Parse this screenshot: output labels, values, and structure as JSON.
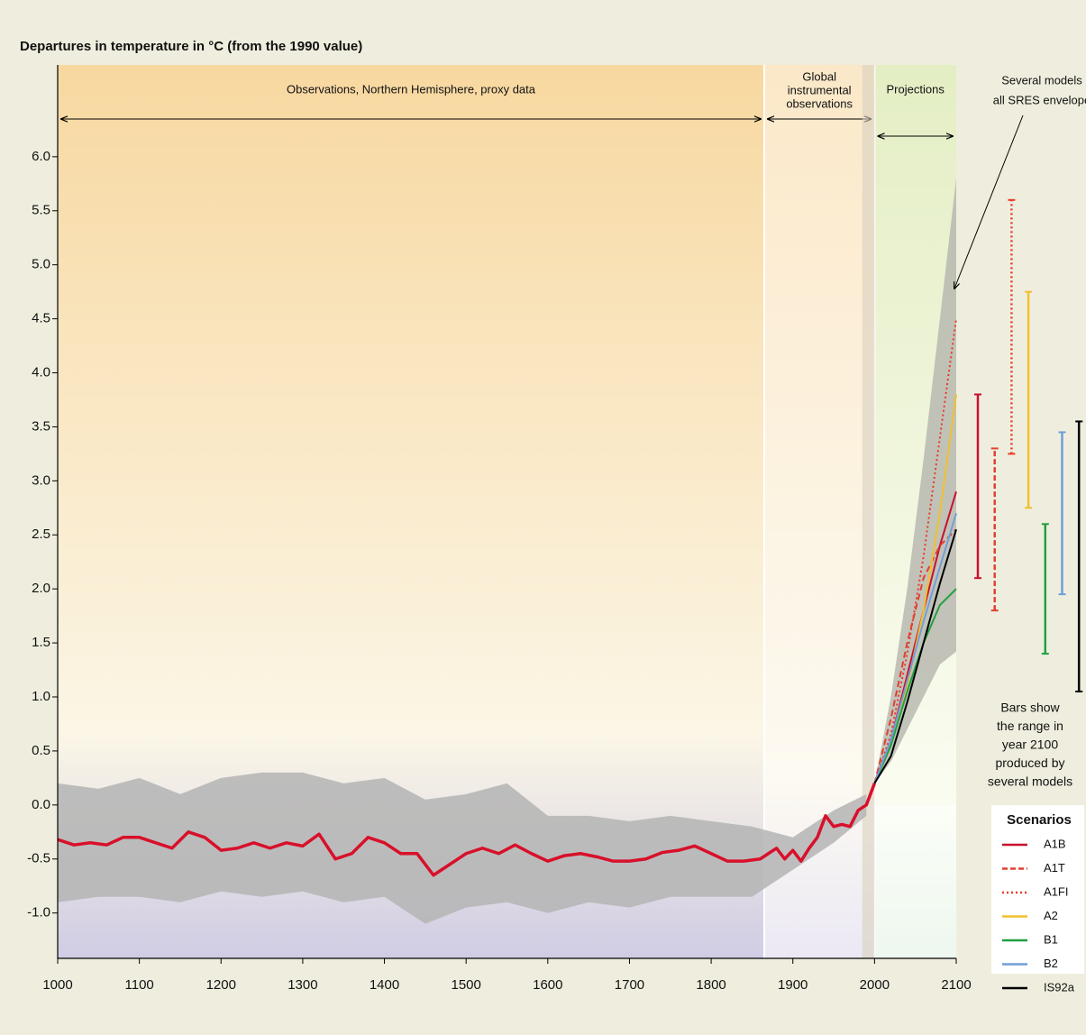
{
  "chart_data": {
    "type": "line",
    "title": "Departures in temperature in °C (from the 1990 value)",
    "xlim": [
      1000,
      2100
    ],
    "xticks": [
      1000,
      1100,
      1200,
      1300,
      1400,
      1500,
      1600,
      1700,
      1800,
      1900,
      2000,
      2100
    ],
    "ylim": [
      -1.42,
      6.85
    ],
    "yticks": [
      {
        "value": 6,
        "label": "6.0"
      },
      5.5,
      {
        "value": 5,
        "label": "5.0"
      },
      4.5,
      {
        "value": 4,
        "label": "4.0"
      },
      3.5,
      {
        "value": 3,
        "label": "3.0"
      },
      2.5,
      {
        "value": 2,
        "label": "2.0"
      },
      1.5,
      {
        "value": 1,
        "label": "1.0"
      },
      0.5,
      {
        "value": 0,
        "label": "0.0"
      },
      -0.5,
      {
        "value": -1,
        "label": "-1.0"
      }
    ],
    "regions": [
      {
        "label": [
          "Observations, Northern Hemisphere, proxy data"
        ],
        "start": 1000,
        "end": 1865
      },
      {
        "label": [
          "Global",
          "instrumental",
          "observations"
        ],
        "start": 1865,
        "end": 2000
      },
      {
        "label": [
          "Projections"
        ],
        "start": 2000,
        "end": 2100
      }
    ],
    "envelope_label": [
      "Several models",
      "all SRES envelope"
    ],
    "bars_note": [
      "Bars show",
      "the range in",
      "year 2100",
      "produced by",
      "several models"
    ],
    "legend_title": "Scenarios",
    "reconstruction": {
      "color": "#d8102a",
      "x": [
        1000,
        1020,
        1040,
        1060,
        1080,
        1100,
        1120,
        1140,
        1160,
        1180,
        1200,
        1220,
        1240,
        1260,
        1280,
        1300,
        1320,
        1340,
        1360,
        1380,
        1400,
        1420,
        1440,
        1460,
        1480,
        1500,
        1520,
        1540,
        1560,
        1580,
        1600,
        1620,
        1640,
        1660,
        1680,
        1700,
        1720,
        1740,
        1760,
        1780,
        1800,
        1820,
        1840,
        1860,
        1870,
        1880,
        1890,
        1900,
        1910,
        1920,
        1930,
        1940,
        1950,
        1960,
        1970,
        1980,
        1990,
        2000
      ],
      "values": [
        -0.32,
        -0.37,
        -0.35,
        -0.37,
        -0.3,
        -0.3,
        -0.35,
        -0.4,
        -0.25,
        -0.3,
        -0.42,
        -0.4,
        -0.35,
        -0.4,
        -0.35,
        -0.38,
        -0.27,
        -0.5,
        -0.45,
        -0.3,
        -0.35,
        -0.45,
        -0.45,
        -0.65,
        -0.55,
        -0.45,
        -0.4,
        -0.45,
        -0.37,
        -0.45,
        -0.52,
        -0.47,
        -0.45,
        -0.48,
        -0.52,
        -0.52,
        -0.5,
        -0.44,
        -0.42,
        -0.38,
        -0.45,
        -0.52,
        -0.52,
        -0.5,
        -0.45,
        -0.4,
        -0.5,
        -0.42,
        -0.52,
        -0.4,
        -0.3,
        -0.1,
        -0.2,
        -0.18,
        -0.2,
        -0.05,
        0.0,
        0.2
      ]
    },
    "reconstruction_band": {
      "color": "#b4b4b4",
      "x": [
        1000,
        1050,
        1100,
        1150,
        1200,
        1250,
        1300,
        1350,
        1400,
        1450,
        1500,
        1550,
        1600,
        1650,
        1700,
        1750,
        1800,
        1850,
        1900,
        1950,
        1990
      ],
      "upper": [
        0.2,
        0.15,
        0.25,
        0.1,
        0.25,
        0.3,
        0.3,
        0.2,
        0.25,
        0.05,
        0.1,
        0.2,
        -0.1,
        -0.1,
        -0.15,
        -0.1,
        -0.15,
        -0.2,
        -0.3,
        -0.05,
        0.1
      ],
      "lower": [
        -0.9,
        -0.85,
        -0.85,
        -0.9,
        -0.8,
        -0.85,
        -0.8,
        -0.9,
        -0.85,
        -1.1,
        -0.95,
        -0.9,
        -1.0,
        -0.9,
        -0.95,
        -0.85,
        -0.85,
        -0.85,
        -0.6,
        -0.35,
        -0.1
      ]
    },
    "envelope": {
      "color": "#b8b8b0",
      "x": [
        2000,
        2020,
        2040,
        2060,
        2080,
        2100
      ],
      "upper": [
        0.2,
        1.0,
        2.0,
        3.2,
        4.5,
        5.8
      ],
      "lower": [
        0.2,
        0.4,
        0.7,
        1.0,
        1.3,
        1.42
      ]
    },
    "x": [
      2000,
      2020,
      2040,
      2060,
      2080,
      2100
    ],
    "series": [
      {
        "name": "A1B",
        "color": "#c8102e",
        "dash": "solid",
        "values": [
          0.2,
          0.6,
          1.2,
          1.8,
          2.4,
          2.9
        ],
        "range": [
          2.1,
          3.8
        ]
      },
      {
        "name": "A1T",
        "color": "#e04030",
        "dash": "dashed",
        "values": [
          0.2,
          0.8,
          1.5,
          2.1,
          2.4,
          2.55
        ],
        "range": [
          1.8,
          3.3
        ]
      },
      {
        "name": "A1FI",
        "color": "#e83a28",
        "dash": "dotted",
        "values": [
          0.2,
          0.65,
          1.4,
          2.3,
          3.4,
          4.5
        ],
        "range": [
          3.25,
          5.6
        ]
      },
      {
        "name": "A2",
        "color": "#f0c030",
        "dash": "solid",
        "values": [
          0.2,
          0.55,
          1.1,
          1.8,
          2.7,
          3.8
        ],
        "range": [
          2.75,
          4.75
        ]
      },
      {
        "name": "B1",
        "color": "#1fa040",
        "dash": "solid",
        "values": [
          0.2,
          0.55,
          1.05,
          1.5,
          1.85,
          2.0
        ],
        "range": [
          1.4,
          2.6
        ]
      },
      {
        "name": "B2",
        "color": "#6fa0d8",
        "dash": "solid",
        "values": [
          0.2,
          0.6,
          1.15,
          1.7,
          2.2,
          2.7
        ],
        "range": [
          1.95,
          3.45
        ]
      },
      {
        "name": "IS92a",
        "color": "#000000",
        "dash": "solid",
        "values": [
          0.2,
          0.45,
          0.95,
          1.5,
          2.05,
          2.55
        ],
        "range": [
          1.05,
          3.55
        ]
      }
    ]
  }
}
